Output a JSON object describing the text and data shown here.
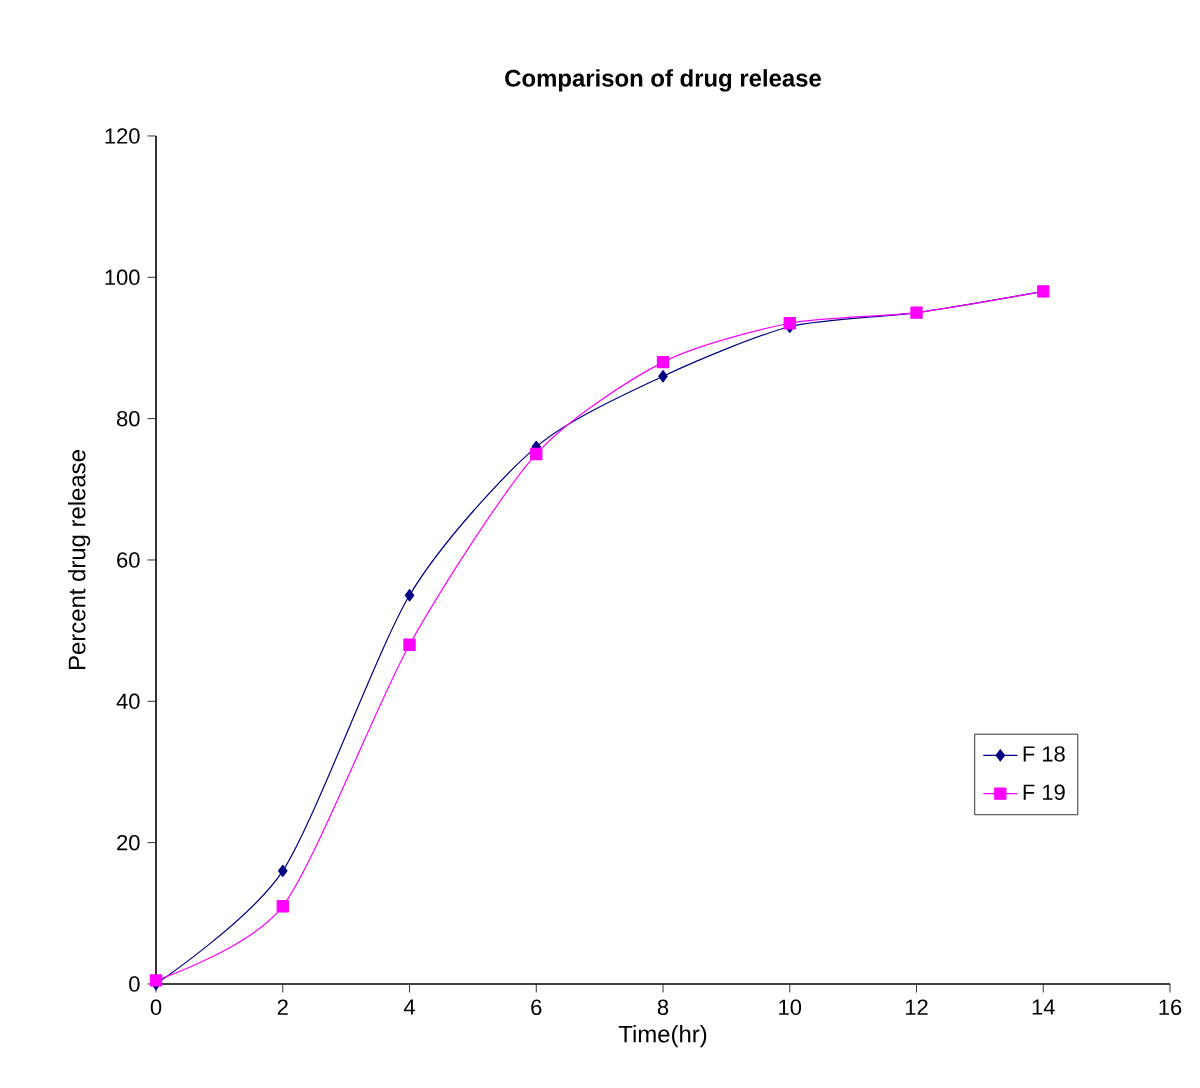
{
  "chart_data": {
    "type": "line",
    "title": "Comparison of drug release",
    "xlabel": "Time(hr)",
    "ylabel": "Percent drug release",
    "x": [
      0,
      2,
      4,
      6,
      8,
      10,
      12,
      14
    ],
    "series": [
      {
        "name": "F 18",
        "color": "#000080",
        "marker": "diamond",
        "values": [
          0,
          16,
          55,
          76,
          86,
          93,
          95,
          98
        ]
      },
      {
        "name": "F 19",
        "color": "#ff00ff",
        "marker": "square",
        "values": [
          0.5,
          11,
          48,
          75,
          88,
          93.5,
          95,
          98
        ]
      }
    ],
    "xlim": [
      0,
      16
    ],
    "xticks": [
      0,
      2,
      4,
      6,
      8,
      10,
      12,
      14,
      16
    ],
    "ylim": [
      0,
      120
    ],
    "yticks": [
      0,
      20,
      40,
      60,
      80,
      100,
      120
    ],
    "grid": false,
    "legend": "right",
    "line_style": "solid"
  }
}
